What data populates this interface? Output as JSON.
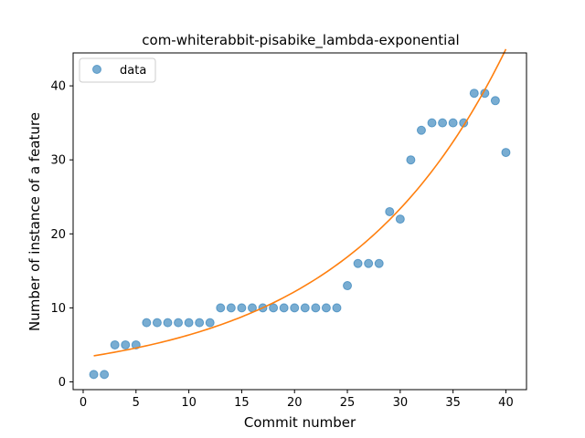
{
  "chart_data": {
    "type": "scatter",
    "title": "com-whiterabbit-pisabike_lambda-exponential",
    "xlabel": "Commit number",
    "ylabel": "Number of instance of a feature",
    "xlim": [
      -0.95,
      41.95
    ],
    "ylim": [
      -1.05,
      44.45
    ],
    "xticks": [
      0,
      5,
      10,
      15,
      20,
      25,
      30,
      35,
      40
    ],
    "yticks": [
      0,
      10,
      20,
      30,
      40
    ],
    "grid": false,
    "legend_position": "top-left",
    "series": [
      {
        "name": "data",
        "kind": "scatter",
        "color": "#1f77b4",
        "x": [
          1,
          2,
          3,
          4,
          5,
          6,
          7,
          8,
          9,
          10,
          11,
          12,
          13,
          14,
          15,
          16,
          17,
          18,
          19,
          20,
          21,
          22,
          23,
          24,
          25,
          26,
          27,
          28,
          29,
          30,
          31,
          32,
          33,
          34,
          35,
          36,
          37,
          38,
          39,
          40
        ],
        "y": [
          1,
          1,
          5,
          5,
          5,
          8,
          8,
          8,
          8,
          8,
          8,
          8,
          10,
          10,
          10,
          10,
          10,
          10,
          10,
          10,
          10,
          10,
          10,
          10,
          13,
          16,
          16,
          16,
          23,
          22,
          30,
          34,
          35,
          35,
          35,
          35,
          39,
          39,
          38,
          31
        ]
      },
      {
        "kind": "line",
        "color": "#ff7f0e",
        "fit": {
          "form": "exponential",
          "a": 3.3,
          "b": 0.0653
        },
        "x_range": [
          1,
          40
        ]
      }
    ]
  }
}
